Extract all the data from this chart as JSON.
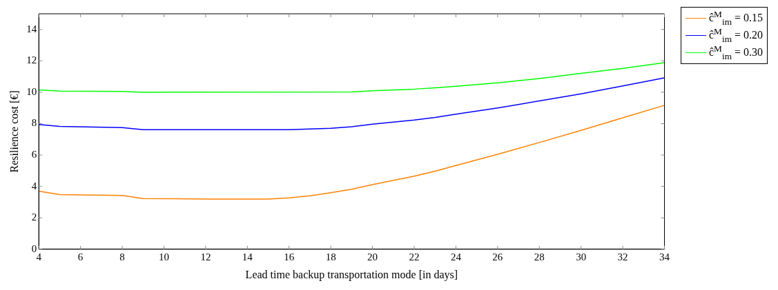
{
  "chart_data": {
    "type": "line",
    "xlabel": "Lead time backup transportation mode [in days]",
    "ylabel": "Resilience cost [€]",
    "xlim": [
      4,
      34
    ],
    "xticks": [
      4,
      6,
      8,
      10,
      12,
      14,
      16,
      18,
      20,
      22,
      24,
      26,
      28,
      30,
      32,
      34
    ],
    "ylim": [
      0,
      15
    ],
    "yticks": [
      0,
      2,
      4,
      6,
      8,
      10,
      12,
      14
    ],
    "grid": false,
    "legend": "top right",
    "marker": "none",
    "line_style": "solid",
    "series": [
      {
        "name": "ĉ$^{M}$$_{im}$ = 0.15",
        "color": "#ff8000",
        "x": [
          4,
          5,
          8,
          9,
          12,
          15,
          16,
          17,
          18,
          19,
          20,
          22,
          23,
          24,
          26,
          28,
          30,
          32,
          34
        ],
        "values": [
          3.7,
          3.48,
          3.43,
          3.23,
          3.2,
          3.2,
          3.27,
          3.4,
          3.6,
          3.82,
          4.12,
          4.65,
          4.97,
          5.33,
          6.05,
          6.8,
          7.57,
          8.37,
          9.17
        ]
      },
      {
        "name": "ĉ$^{M}$$_{im}$ = 0.20",
        "color": "#0000ff",
        "x": [
          4,
          5,
          8,
          9,
          16,
          18,
          19,
          20,
          22,
          23,
          24,
          26,
          28,
          30,
          32,
          34
        ],
        "values": [
          7.95,
          7.82,
          7.75,
          7.62,
          7.62,
          7.7,
          7.8,
          7.97,
          8.23,
          8.4,
          8.6,
          9.0,
          9.45,
          9.9,
          10.4,
          10.92
        ]
      },
      {
        "name": "ĉ$^{M}$$_{im}$ = 0.30",
        "color": "#00ff00",
        "x": [
          4,
          5,
          8,
          9,
          19,
          20,
          22,
          23,
          24,
          26,
          28,
          30,
          32,
          34
        ],
        "values": [
          10.15,
          10.07,
          10.05,
          10.0,
          10.02,
          10.1,
          10.2,
          10.28,
          10.38,
          10.6,
          10.88,
          11.2,
          11.52,
          11.88
        ]
      }
    ]
  }
}
